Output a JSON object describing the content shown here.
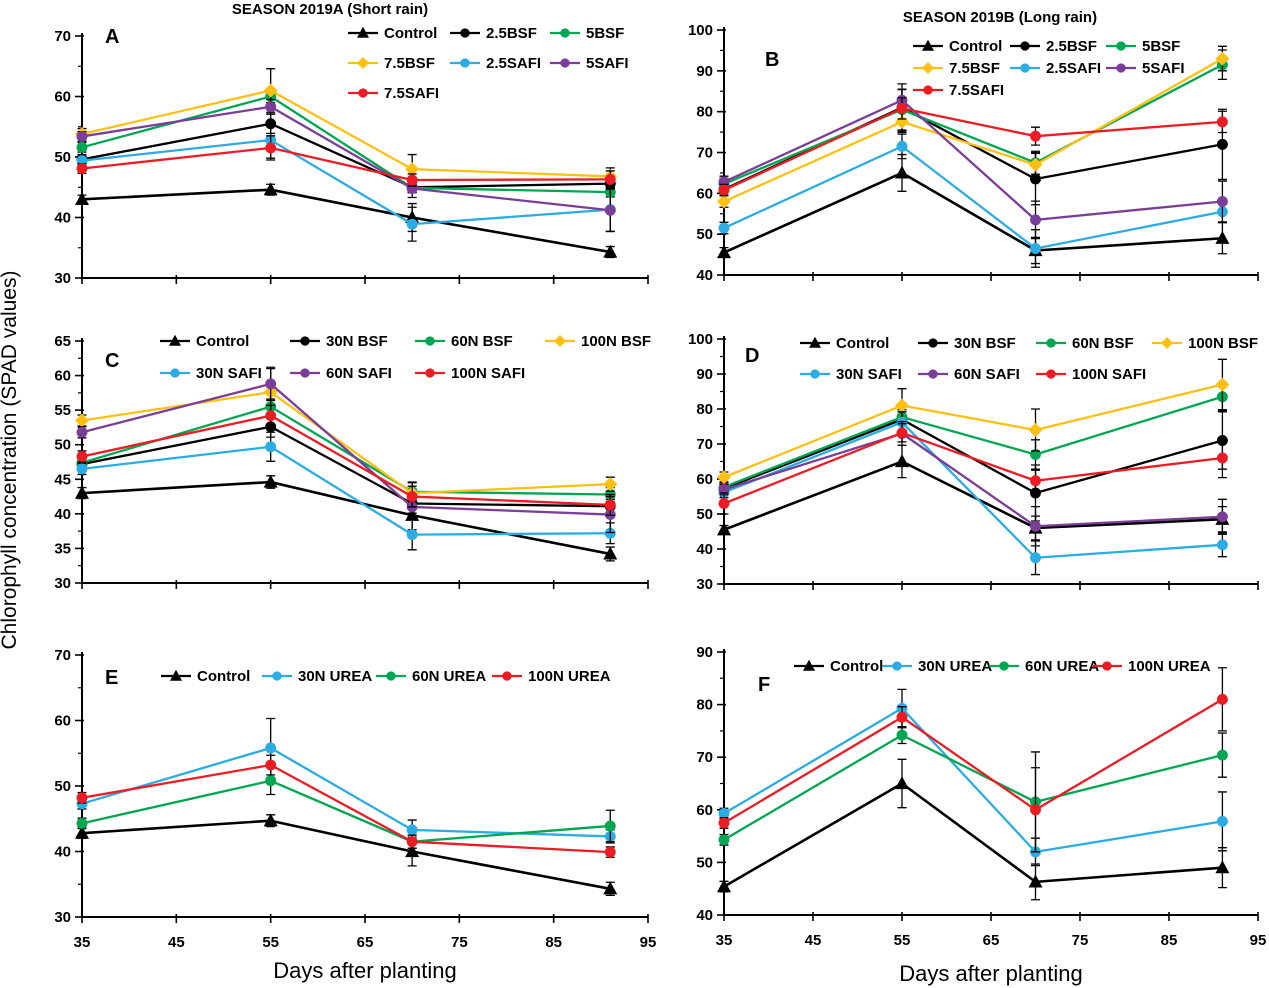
{
  "figure": {
    "y_axis_label": "Chlorophyll concentration (SPAD values)",
    "x_axis_label": "Days after planting"
  },
  "colors": {
    "black": "#000000",
    "green": "#00A651",
    "yellow": "#FFC013",
    "blue": "#2BACE2",
    "purple": "#7A3E98",
    "red": "#EC1C24"
  },
  "chart_data": [
    {
      "id": "A",
      "type": "line",
      "title": "SEASON 2019A (Short rain)",
      "x": [
        35,
        55,
        70,
        91
      ],
      "xticks": [
        35,
        45,
        55,
        65,
        75,
        85,
        95
      ],
      "xlim": [
        35,
        95
      ],
      "ylim": [
        30,
        70
      ],
      "ytick_step": 10,
      "x_tick_labels_visible": false,
      "xlabel": "",
      "series": [
        {
          "name": "Control",
          "color": "black",
          "marker": "triangle",
          "values": [
            43.0,
            44.6,
            40.0,
            34.3
          ],
          "err": [
            0.7,
            0.9,
            2.3,
            0.9
          ]
        },
        {
          "name": "2.5BSF",
          "color": "black",
          "marker": "circle",
          "values": [
            49.6,
            55.5,
            45.0,
            45.6
          ],
          "err": [
            0.8,
            1.6,
            0.8,
            0.9
          ]
        },
        {
          "name": "5BSF",
          "color": "green",
          "marker": "circle",
          "values": [
            51.6,
            60.0,
            44.9,
            44.2
          ],
          "err": [
            0.8,
            1.0,
            0.8,
            0.8
          ]
        },
        {
          "name": "7.5BSF",
          "color": "yellow",
          "marker": "diamond",
          "values": [
            53.8,
            61.0,
            48.0,
            46.8
          ],
          "err": [
            0.9,
            3.6,
            2.4,
            1.4
          ]
        },
        {
          "name": "2.5SAFI",
          "color": "blue",
          "marker": "circle",
          "values": [
            49.4,
            52.8,
            38.9,
            41.3
          ],
          "err": [
            0.8,
            3.0,
            2.8,
            3.6
          ]
        },
        {
          "name": "5SAFI",
          "color": "purple",
          "marker": "circle",
          "values": [
            53.4,
            58.3,
            44.8,
            41.2
          ],
          "err": [
            0.8,
            1.2,
            1.5,
            3.5
          ]
        },
        {
          "name": "7.5SAFI",
          "color": "red",
          "marker": "circle",
          "values": [
            48.1,
            51.5,
            46.2,
            46.3
          ],
          "err": [
            0.8,
            2.0,
            1.0,
            1.4
          ]
        }
      ]
    },
    {
      "id": "B",
      "type": "line",
      "title": "SEASON 2019B (Long rain)",
      "x": [
        35,
        55,
        70,
        91
      ],
      "xticks": [
        35,
        45,
        55,
        65,
        75,
        85,
        95
      ],
      "xlim": [
        35,
        95
      ],
      "ylim": [
        40,
        100
      ],
      "ytick_step": 10,
      "x_tick_labels_visible": false,
      "xlabel": "",
      "series": [
        {
          "name": "Control",
          "color": "black",
          "marker": "triangle",
          "values": [
            45.5,
            65.0,
            46.0,
            49.0
          ],
          "err": [
            1.2,
            4.5,
            3.2,
            3.8
          ]
        },
        {
          "name": "2.5BSF",
          "color": "black",
          "marker": "circle",
          "values": [
            61.0,
            81.0,
            63.5,
            72.0
          ],
          "err": [
            1.4,
            5.8,
            6.3,
            8.6
          ]
        },
        {
          "name": "5BSF",
          "color": "green",
          "marker": "circle",
          "values": [
            62.3,
            80.5,
            67.5,
            91.5
          ],
          "err": [
            1.4,
            5.0,
            2.8,
            3.6
          ]
        },
        {
          "name": "7.5BSF",
          "color": "yellow",
          "marker": "diamond",
          "values": [
            58.0,
            77.5,
            67.0,
            93.0
          ],
          "err": [
            1.4,
            2.6,
            3.0,
            3.0
          ]
        },
        {
          "name": "2.5SAFI",
          "color": "blue",
          "marker": "circle",
          "values": [
            51.5,
            71.5,
            46.5,
            55.5
          ],
          "err": [
            1.4,
            3.0,
            4.6,
            2.6
          ]
        },
        {
          "name": "5SAFI",
          "color": "purple",
          "marker": "circle",
          "values": [
            62.8,
            82.8,
            53.5,
            58.0
          ],
          "err": [
            1.4,
            2.6,
            4.6,
            5.0
          ]
        },
        {
          "name": "7.5SAFI",
          "color": "red",
          "marker": "circle",
          "values": [
            60.8,
            80.8,
            74.0,
            77.5
          ],
          "err": [
            1.4,
            2.6,
            2.2,
            2.6
          ]
        }
      ]
    },
    {
      "id": "C",
      "type": "line",
      "title": "",
      "x": [
        35,
        55,
        70,
        91
      ],
      "xticks": [
        35,
        45,
        55,
        65,
        75,
        85,
        95
      ],
      "xlim": [
        35,
        95
      ],
      "ylim": [
        30,
        65
      ],
      "ytick_step": 5,
      "x_tick_labels_visible": false,
      "xlabel": "",
      "series": [
        {
          "name": "Control",
          "color": "black",
          "marker": "triangle",
          "values": [
            43.0,
            44.6,
            39.8,
            34.2
          ],
          "err": [
            0.8,
            0.9,
            2.1,
            1.0
          ]
        },
        {
          "name": "30N BSF",
          "color": "black",
          "marker": "circle",
          "values": [
            47.2,
            52.6,
            41.5,
            41.1
          ],
          "err": [
            0.8,
            1.5,
            1.4,
            1.0
          ]
        },
        {
          "name": "60N BSF",
          "color": "green",
          "marker": "circle",
          "values": [
            47.4,
            55.5,
            43.2,
            42.8
          ],
          "err": [
            0.8,
            1.1,
            1.4,
            1.0
          ]
        },
        {
          "name": "100N BSF",
          "color": "yellow",
          "marker": "diamond",
          "values": [
            53.5,
            57.6,
            43.0,
            44.3
          ],
          "err": [
            0.8,
            3.4,
            1.5,
            1.0
          ]
        },
        {
          "name": "30N SAFI",
          "color": "blue",
          "marker": "circle",
          "values": [
            46.5,
            49.7,
            37.0,
            37.2
          ],
          "err": [
            0.8,
            2.1,
            2.2,
            1.5
          ]
        },
        {
          "name": "60N SAFI",
          "color": "purple",
          "marker": "circle",
          "values": [
            51.8,
            58.8,
            41.0,
            39.9
          ],
          "err": [
            0.8,
            2.4,
            1.5,
            2.6
          ]
        },
        {
          "name": "100N SAFI",
          "color": "red",
          "marker": "circle",
          "values": [
            48.3,
            54.2,
            42.5,
            41.3
          ],
          "err": [
            0.8,
            1.5,
            1.5,
            1.5
          ]
        }
      ]
    },
    {
      "id": "D",
      "type": "line",
      "title": "",
      "x": [
        35,
        55,
        70,
        91
      ],
      "xticks": [
        35,
        45,
        55,
        65,
        75,
        85,
        95
      ],
      "xlim": [
        35,
        95
      ],
      "ylim": [
        30,
        100
      ],
      "ytick_step": 10,
      "x_tick_labels_visible": false,
      "xlabel": "",
      "series": [
        {
          "name": "Control",
          "color": "black",
          "marker": "triangle",
          "values": [
            45.5,
            65.0,
            46.0,
            48.5
          ],
          "err": [
            1.2,
            4.6,
            3.4,
            3.6
          ]
        },
        {
          "name": "30N BSF",
          "color": "black",
          "marker": "circle",
          "values": [
            57.3,
            77.0,
            56.0,
            71.0
          ],
          "err": [
            1.5,
            4.0,
            8.0,
            8.2
          ]
        },
        {
          "name": "60N BSF",
          "color": "green",
          "marker": "circle",
          "values": [
            57.7,
            77.7,
            67.0,
            83.5
          ],
          "err": [
            1.5,
            2.1,
            4.2,
            4.0
          ]
        },
        {
          "name": "100N BSF",
          "color": "yellow",
          "marker": "diamond",
          "values": [
            60.5,
            81.0,
            74.0,
            87.0
          ],
          "err": [
            1.5,
            4.8,
            6.0,
            7.2
          ]
        },
        {
          "name": "30N SAFI",
          "color": "blue",
          "marker": "circle",
          "values": [
            56.2,
            76.2,
            37.5,
            41.2
          ],
          "err": [
            1.5,
            3.0,
            4.8,
            3.4
          ]
        },
        {
          "name": "60N SAFI",
          "color": "purple",
          "marker": "circle",
          "values": [
            57.0,
            73.0,
            46.5,
            49.2
          ],
          "err": [
            1.5,
            3.4,
            5.6,
            5.0
          ]
        },
        {
          "name": "100N SAFI",
          "color": "red",
          "marker": "circle",
          "values": [
            53.0,
            73.2,
            59.5,
            66.0
          ],
          "err": [
            3.0,
            2.6,
            3.0,
            5.6
          ]
        }
      ]
    },
    {
      "id": "E",
      "type": "line",
      "title": "",
      "x": [
        35,
        55,
        70,
        91
      ],
      "xticks": [
        35,
        45,
        55,
        65,
        75,
        85,
        95
      ],
      "xlim": [
        35,
        95
      ],
      "ylim": [
        30,
        70
      ],
      "ytick_step": 10,
      "x_tick_labels_visible": true,
      "xlabel": "Days after planting",
      "series": [
        {
          "name": "Control",
          "color": "black",
          "marker": "triangle",
          "values": [
            42.8,
            44.7,
            40.0,
            34.3
          ],
          "err": [
            0.8,
            0.9,
            2.2,
            1.0
          ]
        },
        {
          "name": "30N UREA",
          "color": "blue",
          "marker": "circle",
          "values": [
            47.3,
            55.8,
            43.3,
            42.3
          ],
          "err": [
            0.8,
            4.5,
            1.5,
            1.0
          ]
        },
        {
          "name": "60N UREA",
          "color": "green",
          "marker": "circle",
          "values": [
            44.3,
            50.8,
            41.5,
            43.9
          ],
          "err": [
            0.8,
            2.1,
            1.0,
            2.4
          ]
        },
        {
          "name": "100N UREA",
          "color": "red",
          "marker": "circle",
          "values": [
            48.2,
            53.2,
            41.5,
            39.9
          ],
          "err": [
            0.8,
            1.5,
            1.0,
            0.8
          ]
        }
      ]
    },
    {
      "id": "F",
      "type": "line",
      "title": "",
      "x": [
        35,
        55,
        70,
        91
      ],
      "xticks": [
        35,
        45,
        55,
        65,
        75,
        85,
        95
      ],
      "xlim": [
        35,
        95
      ],
      "ylim": [
        40,
        90
      ],
      "ytick_step": 10,
      "x_tick_labels_visible": true,
      "xlabel": "Days after planting",
      "series": [
        {
          "name": "Control",
          "color": "black",
          "marker": "triangle",
          "values": [
            45.4,
            65.0,
            46.3,
            49.0
          ],
          "err": [
            1.0,
            4.6,
            3.4,
            3.8
          ]
        },
        {
          "name": "30N UREA",
          "color": "blue",
          "marker": "circle",
          "values": [
            59.3,
            79.3,
            52.0,
            57.8
          ],
          "err": [
            1.0,
            3.6,
            2.6,
            5.6
          ]
        },
        {
          "name": "60N UREA",
          "color": "green",
          "marker": "circle",
          "values": [
            54.3,
            74.2,
            61.5,
            70.4
          ],
          "err": [
            1.0,
            1.6,
            9.5,
            4.2
          ]
        },
        {
          "name": "100N UREA",
          "color": "red",
          "marker": "circle",
          "values": [
            57.5,
            77.6,
            60.0,
            81.0
          ],
          "err": [
            1.0,
            2.0,
            8.0,
            6.0
          ]
        }
      ]
    }
  ]
}
